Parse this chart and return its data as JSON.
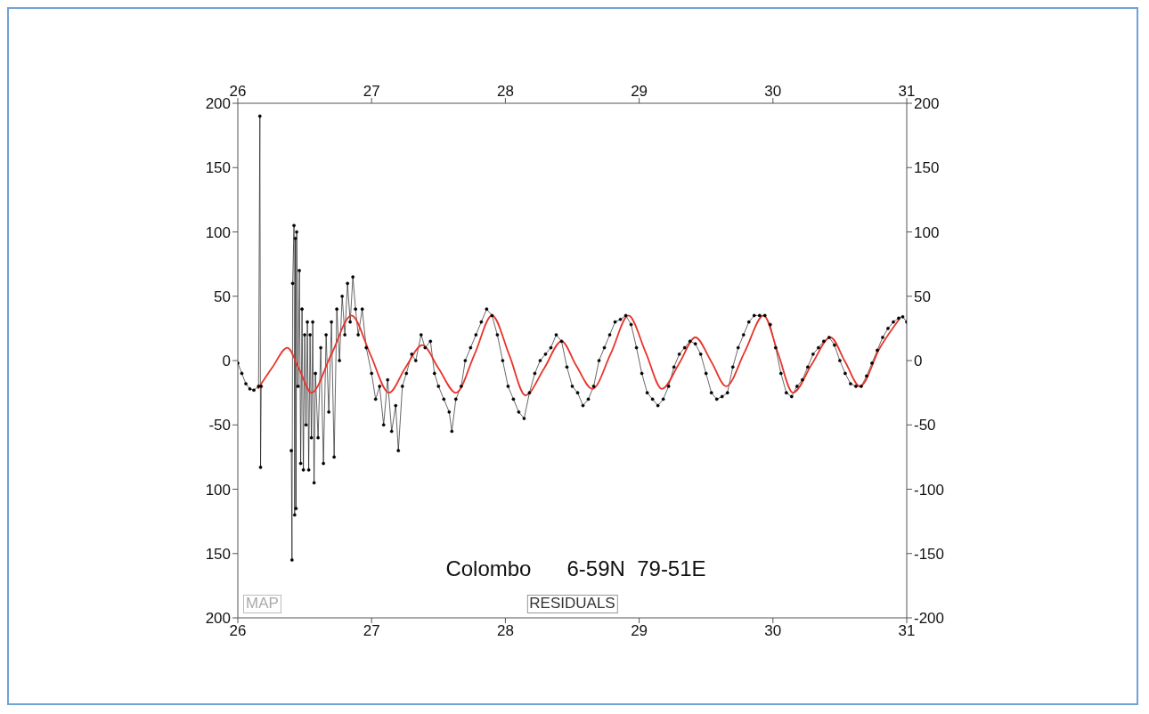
{
  "chart_data": {
    "type": "line",
    "annotations": [
      "Colombo      6-59N  79-51E",
      "MAP",
      "RESIDUALS"
    ],
    "xlim": [
      26,
      31
    ],
    "xticks": [
      26,
      27,
      28,
      29,
      30,
      31
    ],
    "x2lim": [
      26,
      31
    ],
    "x2ticks": [
      26,
      27,
      28,
      29,
      30,
      31
    ],
    "ylim": [
      -200,
      200
    ],
    "yticks": [
      {
        "value": -200,
        "label": "200"
      },
      {
        "value": -150,
        "label": "150"
      },
      {
        "value": -100,
        "label": "100"
      },
      -50,
      0,
      50,
      100,
      150,
      200
    ],
    "y2lim": [
      -200,
      200
    ],
    "y2ticks": [
      -200,
      -150,
      -100,
      -50,
      0,
      50,
      100,
      150,
      200
    ],
    "marker": "circle",
    "series": [
      {
        "color": "#000000",
        "x": [
          26.0,
          26.03,
          26.06,
          26.09,
          26.12,
          26.155,
          26.165,
          26.17,
          26.175,
          26.3,
          26.4,
          26.405,
          26.41,
          26.42,
          26.425,
          26.43,
          26.435,
          26.44,
          26.45,
          26.46,
          26.47,
          26.48,
          26.49,
          26.5,
          26.51,
          26.52,
          26.53,
          26.54,
          26.55,
          26.56,
          26.57,
          26.58,
          26.6,
          26.62,
          26.64,
          26.66,
          26.68,
          26.7,
          26.72,
          26.74,
          26.76,
          26.78,
          26.8,
          26.82,
          26.84,
          26.86,
          26.88,
          26.9,
          26.93,
          26.96,
          27.0,
          27.03,
          27.06,
          27.09,
          27.12,
          27.15,
          27.18,
          27.2,
          27.23,
          27.26,
          27.3,
          27.33,
          27.37,
          27.4,
          27.44,
          27.47,
          27.5,
          27.54,
          27.58,
          27.6,
          27.63,
          27.67,
          27.7,
          27.74,
          27.78,
          27.82,
          27.86,
          27.9,
          27.94,
          27.98,
          28.02,
          28.06,
          28.1,
          28.14,
          28.18,
          28.22,
          28.26,
          28.3,
          28.34,
          28.38,
          28.42,
          28.46,
          28.5,
          28.54,
          28.58,
          28.62,
          28.66,
          28.7,
          28.74,
          28.78,
          28.82,
          28.86,
          28.9,
          28.94,
          28.98,
          29.02,
          29.06,
          29.1,
          29.14,
          29.18,
          29.22,
          29.26,
          29.3,
          29.34,
          29.38,
          29.42,
          29.46,
          29.5,
          29.54,
          29.58,
          29.62,
          29.66,
          29.7,
          29.74,
          29.78,
          29.82,
          29.86,
          29.9,
          29.94,
          29.98,
          30.02,
          30.06,
          30.1,
          30.14,
          30.18,
          30.22,
          30.26,
          30.3,
          30.34,
          30.38,
          30.42,
          30.46,
          30.5,
          30.54,
          30.58,
          30.62,
          30.66,
          30.7,
          30.74,
          30.78,
          30.82,
          30.86,
          30.9,
          30.94,
          30.97,
          31.0
        ],
        "values": [
          -2,
          -10,
          -18,
          -22,
          -23,
          -20,
          190,
          -83,
          -20,
          null,
          -70,
          -155,
          60,
          105,
          -120,
          95,
          -115,
          100,
          -20,
          70,
          -80,
          40,
          -85,
          20,
          -50,
          30,
          -85,
          20,
          -60,
          30,
          -95,
          -10,
          -60,
          10,
          -80,
          20,
          -40,
          30,
          -75,
          40,
          0,
          50,
          20,
          60,
          30,
          65,
          40,
          20,
          40,
          10,
          -10,
          -30,
          -20,
          -50,
          -15,
          -55,
          -35,
          -70,
          -20,
          -10,
          5,
          0,
          20,
          10,
          15,
          -10,
          -20,
          -30,
          -40,
          -55,
          -30,
          -20,
          0,
          10,
          20,
          30,
          40,
          35,
          20,
          0,
          -20,
          -30,
          -40,
          -45,
          -25,
          -10,
          0,
          5,
          10,
          20,
          15,
          -5,
          -20,
          -25,
          -35,
          -30,
          -20,
          0,
          10,
          20,
          30,
          32,
          35,
          28,
          10,
          -10,
          -25,
          -30,
          -35,
          -30,
          -20,
          -5,
          5,
          10,
          15,
          13,
          5,
          -10,
          -25,
          -30,
          -28,
          -25,
          -5,
          10,
          20,
          30,
          35,
          35,
          35,
          28,
          10,
          -10,
          -25,
          -28,
          -20,
          -15,
          -5,
          5,
          10,
          15,
          18,
          12,
          0,
          -10,
          -18,
          -20,
          -20,
          -12,
          -2,
          8,
          18,
          25,
          30,
          33,
          34,
          30
        ]
      },
      {
        "color": "#e8342a",
        "marker": "none",
        "x": [
          26.15,
          26.26,
          26.37,
          26.46,
          26.55,
          26.7,
          26.85,
          26.99,
          27.13,
          27.25,
          27.38,
          27.5,
          27.63,
          27.77,
          27.9,
          28.03,
          28.15,
          28.29,
          28.42,
          28.53,
          28.65,
          28.79,
          28.92,
          29.05,
          29.17,
          29.3,
          29.42,
          29.54,
          29.65,
          29.79,
          29.93,
          30.04,
          30.15,
          30.29,
          30.43,
          30.54,
          30.65,
          30.8,
          30.95
        ],
        "values": [
          -22,
          -5,
          10,
          -7,
          -25,
          5,
          35,
          5,
          -25,
          -6,
          12,
          -6,
          -25,
          5,
          35,
          4,
          -27,
          -6,
          15,
          -4,
          -22,
          6,
          35,
          6,
          -22,
          -2,
          18,
          -1,
          -20,
          7,
          35,
          5,
          -25,
          -3,
          18,
          -1,
          -20,
          10,
          33
        ]
      }
    ]
  }
}
